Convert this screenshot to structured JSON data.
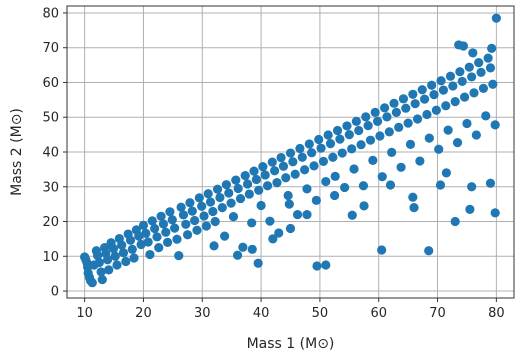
{
  "chart_data": {
    "type": "scatter",
    "xlabel": "Mass 1 (M⊙)",
    "ylabel": "Mass 2 (M⊙)",
    "xlim": [
      7,
      83
    ],
    "ylim": [
      -2,
      82
    ],
    "xticks": [
      10,
      20,
      30,
      40,
      50,
      60,
      70,
      80
    ],
    "yticks": [
      0,
      10,
      20,
      30,
      40,
      50,
      60,
      70,
      80
    ],
    "grid": true,
    "marker_color": "#1f77b4",
    "series": [
      {
        "points": [
          [
            10.0,
            9.8
          ],
          [
            10.2,
            9.0
          ],
          [
            10.4,
            8.1
          ],
          [
            10.5,
            6.9
          ],
          [
            10.6,
            5.2
          ],
          [
            10.8,
            4.0
          ],
          [
            11.0,
            3.0
          ],
          [
            11.3,
            2.4
          ],
          [
            11.6,
            7.5
          ],
          [
            12.0,
            11.6
          ],
          [
            12.2,
            10.2
          ],
          [
            12.5,
            8.2
          ],
          [
            12.8,
            5.5
          ],
          [
            13.0,
            3.3
          ],
          [
            13.4,
            12.5
          ],
          [
            13.6,
            10.8
          ],
          [
            13.9,
            9.0
          ],
          [
            14.1,
            6.1
          ],
          [
            14.5,
            13.9
          ],
          [
            14.9,
            12.2
          ],
          [
            15.2,
            10.0
          ],
          [
            15.5,
            7.5
          ],
          [
            15.9,
            15.1
          ],
          [
            16.3,
            13.2
          ],
          [
            16.6,
            11.0
          ],
          [
            17.0,
            8.5
          ],
          [
            17.4,
            16.4
          ],
          [
            17.8,
            14.6
          ],
          [
            18.1,
            12.0
          ],
          [
            18.4,
            9.5
          ],
          [
            18.8,
            17.6
          ],
          [
            19.2,
            15.8
          ],
          [
            19.6,
            13.4
          ],
          [
            20.0,
            18.9
          ],
          [
            20.4,
            16.6
          ],
          [
            20.8,
            14.1
          ],
          [
            21.1,
            10.5
          ],
          [
            21.5,
            20.2
          ],
          [
            21.9,
            18.0
          ],
          [
            22.3,
            15.6
          ],
          [
            22.6,
            12.5
          ],
          [
            23.0,
            21.5
          ],
          [
            23.4,
            19.3
          ],
          [
            23.8,
            16.9
          ],
          [
            24.1,
            14.0
          ],
          [
            24.5,
            22.8
          ],
          [
            24.9,
            20.5
          ],
          [
            25.3,
            18.1
          ],
          [
            25.7,
            14.9
          ],
          [
            26.0,
            10.2
          ],
          [
            26.4,
            24.1
          ],
          [
            26.8,
            21.9
          ],
          [
            27.2,
            19.2
          ],
          [
            27.5,
            16.2
          ],
          [
            27.9,
            25.4
          ],
          [
            28.3,
            23.0
          ],
          [
            28.7,
            20.3
          ],
          [
            29.1,
            17.5
          ],
          [
            29.5,
            26.8
          ],
          [
            29.9,
            24.4
          ],
          [
            30.3,
            21.6
          ],
          [
            30.7,
            18.7
          ],
          [
            31.0,
            28.0
          ],
          [
            31.4,
            25.6
          ],
          [
            31.8,
            22.9
          ],
          [
            32.2,
            20.0
          ],
          [
            32.6,
            29.3
          ],
          [
            33.0,
            26.9
          ],
          [
            33.4,
            24.0
          ],
          [
            33.8,
            15.8
          ],
          [
            34.1,
            30.6
          ],
          [
            34.5,
            28.2
          ],
          [
            34.9,
            25.3
          ],
          [
            35.3,
            21.4
          ],
          [
            35.7,
            31.9
          ],
          [
            36.1,
            29.5
          ],
          [
            36.5,
            26.6
          ],
          [
            36.9,
            12.6
          ],
          [
            37.3,
            33.2
          ],
          [
            37.7,
            30.8
          ],
          [
            38.0,
            27.9
          ],
          [
            38.4,
            19.6
          ],
          [
            38.8,
            34.5
          ],
          [
            39.2,
            32.1
          ],
          [
            39.6,
            29.0
          ],
          [
            40.0,
            24.6
          ],
          [
            40.3,
            35.8
          ],
          [
            40.7,
            33.4
          ],
          [
            41.1,
            30.3
          ],
          [
            41.5,
            20.1
          ],
          [
            41.9,
            37.1
          ],
          [
            42.3,
            34.6
          ],
          [
            42.7,
            31.2
          ],
          [
            43.0,
            16.7
          ],
          [
            43.4,
            38.4
          ],
          [
            43.8,
            35.9
          ],
          [
            44.2,
            32.6
          ],
          [
            44.6,
            27.5
          ],
          [
            45.0,
            39.7
          ],
          [
            45.4,
            37.2
          ],
          [
            45.8,
            33.6
          ],
          [
            46.2,
            22.0
          ],
          [
            46.6,
            41.0
          ],
          [
            47.0,
            38.5
          ],
          [
            47.4,
            34.9
          ],
          [
            47.8,
            29.4
          ],
          [
            48.2,
            42.3
          ],
          [
            48.6,
            39.8
          ],
          [
            49.0,
            36.0
          ],
          [
            49.4,
            26.1
          ],
          [
            49.8,
            43.6
          ],
          [
            50.2,
            41.1
          ],
          [
            50.6,
            37.3
          ],
          [
            51.0,
            31.5
          ],
          [
            51.4,
            44.9
          ],
          [
            51.8,
            42.4
          ],
          [
            52.2,
            38.5
          ],
          [
            52.6,
            33.0
          ],
          [
            53.0,
            46.2
          ],
          [
            53.4,
            43.7
          ],
          [
            53.8,
            39.7
          ],
          [
            54.2,
            29.8
          ],
          [
            54.6,
            47.5
          ],
          [
            55.0,
            45.0
          ],
          [
            55.4,
            40.9
          ],
          [
            55.8,
            35.1
          ],
          [
            56.2,
            48.8
          ],
          [
            56.6,
            46.2
          ],
          [
            57.0,
            42.1
          ],
          [
            57.4,
            30.3
          ],
          [
            57.8,
            50.1
          ],
          [
            58.2,
            47.6
          ],
          [
            58.6,
            43.4
          ],
          [
            59.0,
            37.6
          ],
          [
            59.4,
            51.4
          ],
          [
            59.8,
            48.8
          ],
          [
            60.2,
            44.6
          ],
          [
            60.6,
            32.9
          ],
          [
            61.0,
            52.7
          ],
          [
            61.4,
            50.1
          ],
          [
            61.8,
            45.8
          ],
          [
            62.2,
            39.9
          ],
          [
            62.6,
            54.0
          ],
          [
            63.0,
            51.4
          ],
          [
            63.4,
            47.1
          ],
          [
            63.8,
            35.6
          ],
          [
            64.2,
            55.3
          ],
          [
            64.6,
            52.6
          ],
          [
            65.0,
            48.3
          ],
          [
            65.4,
            42.2
          ],
          [
            65.8,
            56.6
          ],
          [
            66.2,
            53.9
          ],
          [
            66.6,
            49.5
          ],
          [
            67.0,
            37.4
          ],
          [
            67.4,
            57.9
          ],
          [
            67.8,
            55.2
          ],
          [
            68.2,
            50.8
          ],
          [
            68.6,
            44.0
          ],
          [
            69.0,
            59.2
          ],
          [
            69.4,
            56.5
          ],
          [
            69.8,
            52.0
          ],
          [
            70.2,
            40.8
          ],
          [
            70.6,
            60.5
          ],
          [
            71.0,
            57.8
          ],
          [
            71.4,
            53.3
          ],
          [
            71.8,
            46.3
          ],
          [
            72.2,
            61.8
          ],
          [
            72.6,
            59.0
          ],
          [
            73.0,
            54.5
          ],
          [
            73.4,
            42.7
          ],
          [
            73.8,
            63.1
          ],
          [
            74.2,
            60.3
          ],
          [
            74.6,
            55.8
          ],
          [
            75.0,
            48.2
          ],
          [
            75.4,
            64.4
          ],
          [
            75.8,
            61.6
          ],
          [
            76.2,
            57.0
          ],
          [
            76.6,
            44.9
          ],
          [
            77.0,
            65.7
          ],
          [
            77.4,
            62.9
          ],
          [
            77.8,
            58.3
          ],
          [
            78.2,
            50.4
          ],
          [
            78.6,
            67.0
          ],
          [
            79.0,
            64.2
          ],
          [
            79.4,
            59.5
          ],
          [
            79.8,
            47.8
          ],
          [
            73.6,
            70.8
          ],
          [
            74.4,
            70.5
          ],
          [
            79.2,
            69.8
          ],
          [
            76.0,
            68.5
          ],
          [
            80.0,
            78.5
          ],
          [
            79.8,
            22.5
          ],
          [
            49.5,
            7.2
          ],
          [
            51.0,
            7.5
          ],
          [
            60.5,
            11.8
          ],
          [
            68.5,
            11.6
          ],
          [
            39.5,
            8.0
          ],
          [
            36.0,
            10.3
          ],
          [
            32.0,
            13.0
          ],
          [
            73.0,
            20.0
          ],
          [
            75.5,
            23.5
          ],
          [
            66.0,
            24.0
          ],
          [
            62.0,
            30.5
          ],
          [
            55.5,
            21.8
          ],
          [
            45.0,
            18.0
          ],
          [
            42.0,
            15.0
          ],
          [
            70.5,
            30.5
          ],
          [
            75.8,
            30.0
          ],
          [
            79.0,
            31.0
          ],
          [
            71.5,
            34.0
          ],
          [
            65.8,
            27.0
          ],
          [
            57.5,
            24.5
          ],
          [
            52.5,
            27.5
          ],
          [
            47.8,
            22.0
          ],
          [
            44.8,
            25.0
          ],
          [
            38.5,
            12.0
          ]
        ]
      }
    ]
  }
}
